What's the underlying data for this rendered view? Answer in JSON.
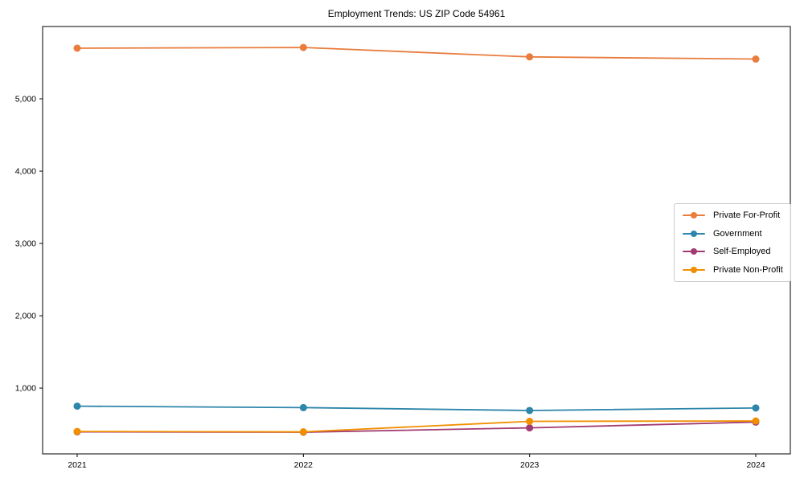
{
  "chart_data": {
    "type": "line",
    "title": "Employment Trends: US ZIP Code 54961",
    "xlabel": "",
    "ylabel": "",
    "grid": false,
    "marker": "circle",
    "background_color": "#ffffff",
    "axis_color": "#000000",
    "legend": {
      "position": "center right",
      "border_color": "#cccccc"
    },
    "categories": [
      "2021",
      "2022",
      "2023",
      "2024"
    ],
    "series": [
      {
        "name": "Private For-Profit",
        "color": "#E87D3E",
        "values": [
          5700,
          5710,
          5580,
          5550
        ]
      },
      {
        "name": "Government",
        "color": "#2E86AB",
        "values": [
          750,
          730,
          690,
          725
        ]
      },
      {
        "name": "Self-Employed",
        "color": "#A23B72",
        "values": [
          395,
          390,
          450,
          530
        ]
      },
      {
        "name": "Private Non-Profit",
        "color": "#F18F01",
        "values": [
          400,
          395,
          540,
          545
        ]
      }
    ],
    "yticks": [
      {
        "value": 1000,
        "label": "1,000"
      },
      {
        "value": 2000,
        "label": "2,000"
      },
      {
        "value": 3000,
        "label": "3,000"
      },
      {
        "value": 4000,
        "label": "4,000"
      },
      {
        "value": 5000,
        "label": "5,000"
      }
    ],
    "ylim": [
      90,
      6000
    ]
  }
}
